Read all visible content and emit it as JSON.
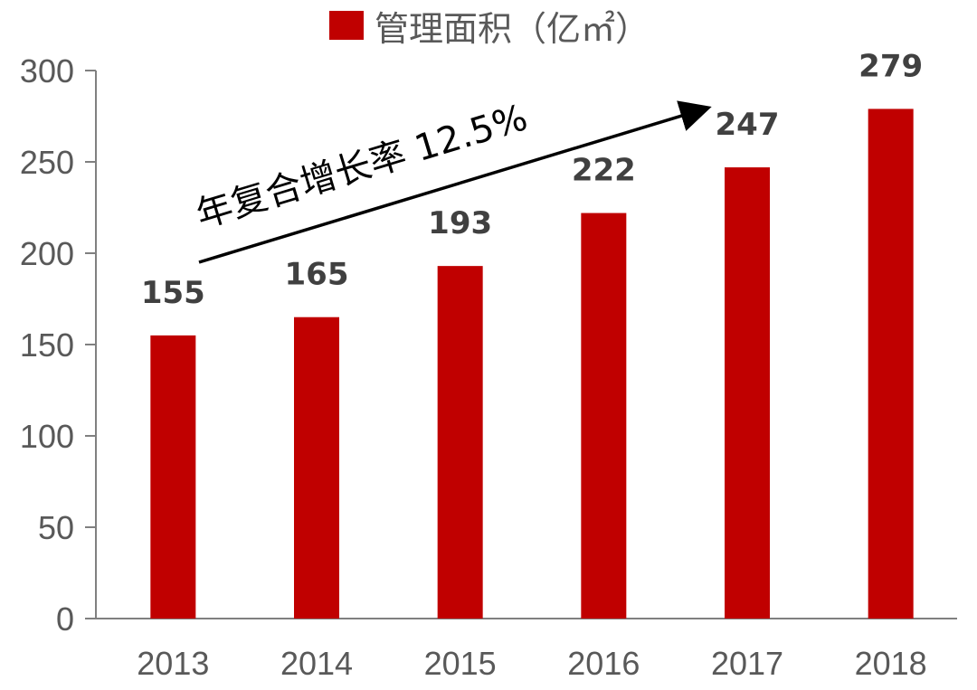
{
  "colors": {
    "bar": "#C00000",
    "axis": "#808080",
    "text": "#595959",
    "value_text": "#404040",
    "arrow": "#000000"
  },
  "legend": {
    "label": "管理面积（亿㎡）"
  },
  "annotation": {
    "text": "年复合增长率 12.5%"
  },
  "chart_data": {
    "type": "bar",
    "categories": [
      "2013",
      "2014",
      "2015",
      "2016",
      "2017",
      "2018"
    ],
    "series": [
      {
        "name": "管理面积（亿㎡）",
        "values": [
          155,
          165,
          193,
          222,
          247,
          279
        ]
      }
    ],
    "ylim": [
      0,
      300
    ],
    "yticks": [
      0,
      50,
      100,
      150,
      200,
      250,
      300
    ],
    "data_labels": [
      "155",
      "165",
      "193",
      "222",
      "247",
      "279"
    ],
    "xlabel": "",
    "ylabel": "",
    "grid": false,
    "legend_position": "top-center"
  }
}
